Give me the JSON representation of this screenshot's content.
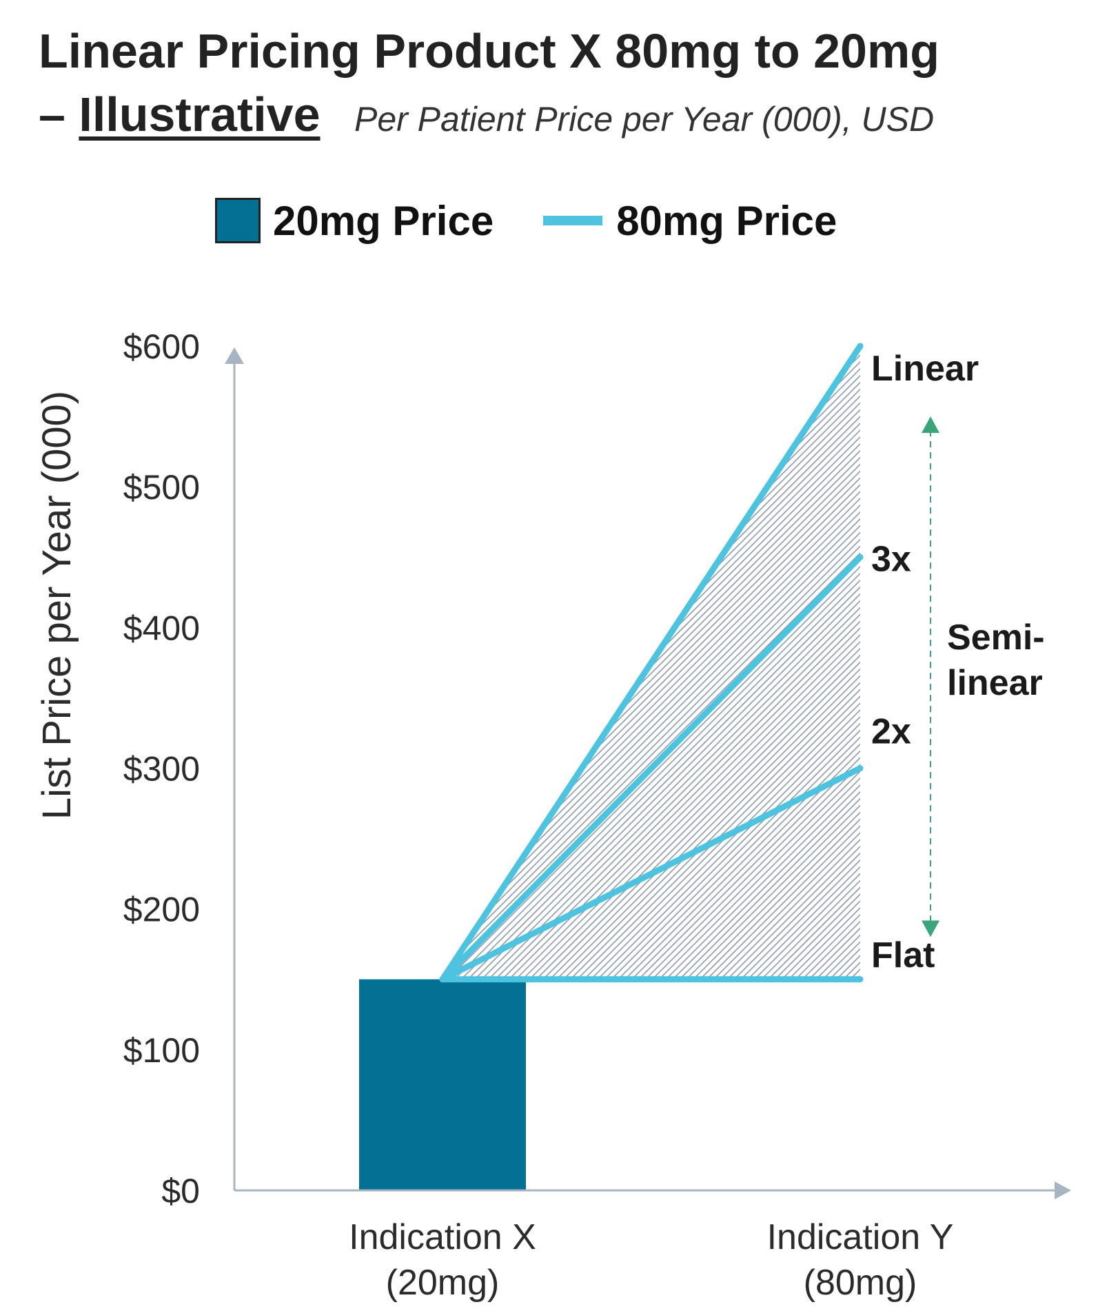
{
  "title": {
    "line1": "Linear Pricing Product X 80mg to 20mg",
    "dash": "–",
    "emphasis": "Illustrative",
    "subtitle": "Per Patient Price per Year (000), USD"
  },
  "legend": [
    {
      "label": "20mg Price",
      "kind": "box",
      "color": "#037094"
    },
    {
      "label": "80mg Price",
      "kind": "line",
      "color": "#4ec3df"
    }
  ],
  "colors": {
    "bar": "#037094",
    "line": "#4ec3df",
    "axis": "#a7b4c2",
    "hatch": "#8d99a8",
    "arrow": "#3aa57a",
    "tick_text": "#2b2b2b"
  },
  "chart_data": {
    "type": "bar",
    "ylabel": "List Price per Year (000)",
    "xlabel": "",
    "ylim": [
      0,
      600
    ],
    "yticks": [
      0,
      100,
      200,
      300,
      400,
      500,
      600
    ],
    "ytick_labels": [
      "$0",
      "$100",
      "$200",
      "$300",
      "$400",
      "$500",
      "$600"
    ],
    "grid": false,
    "categories": [
      {
        "line1": "Indication X",
        "line2": "(20mg)"
      },
      {
        "line1": "Indication Y",
        "line2": "(80mg)"
      }
    ],
    "bars": [
      {
        "category": 0,
        "series": "20mg Price",
        "value": 150
      }
    ],
    "series": [
      {
        "name": "80mg Price",
        "label": "Linear",
        "x": [
          0,
          1
        ],
        "values": [
          150,
          600
        ]
      },
      {
        "name": "80mg Price",
        "label": "3x",
        "x": [
          0,
          1
        ],
        "values": [
          150,
          450
        ]
      },
      {
        "name": "80mg Price",
        "label": "2x",
        "x": [
          0,
          1
        ],
        "values": [
          150,
          300
        ]
      },
      {
        "name": "80mg Price",
        "label": "Flat",
        "x": [
          0,
          1
        ],
        "values": [
          150,
          150
        ]
      }
    ],
    "shaded_region": {
      "between": [
        "Linear",
        "Flat"
      ],
      "pattern": "hatched"
    },
    "range_annotation": {
      "from_value": 550,
      "to_value": 180,
      "label_line1": "Semi-",
      "label_line2": "linear"
    }
  }
}
